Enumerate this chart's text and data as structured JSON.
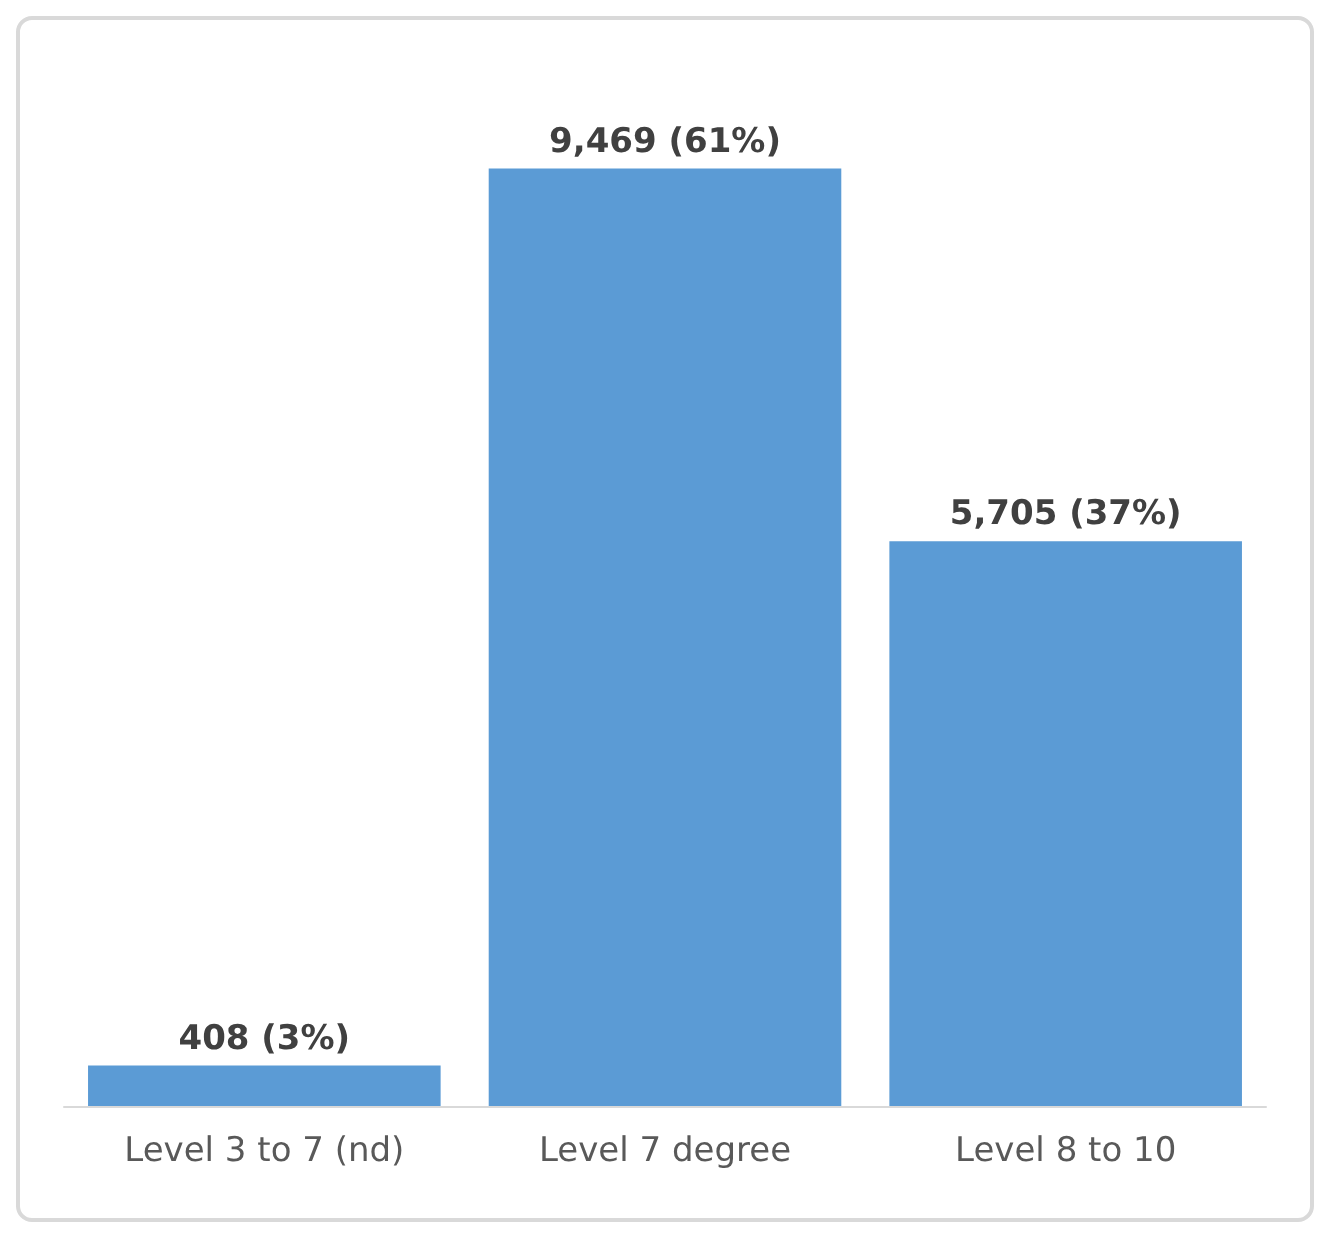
{
  "chart_data": {
    "type": "bar",
    "categories": [
      "Level 3 to 7 (nd)",
      "Level 7 degree",
      "Level 8 to 10"
    ],
    "values": [
      408,
      9469,
      5705
    ],
    "color": "#5b9bd5",
    "value_labels": [
      "408 (3%)",
      "9,469 (61%)",
      "5,705 (37%)"
    ]
  }
}
